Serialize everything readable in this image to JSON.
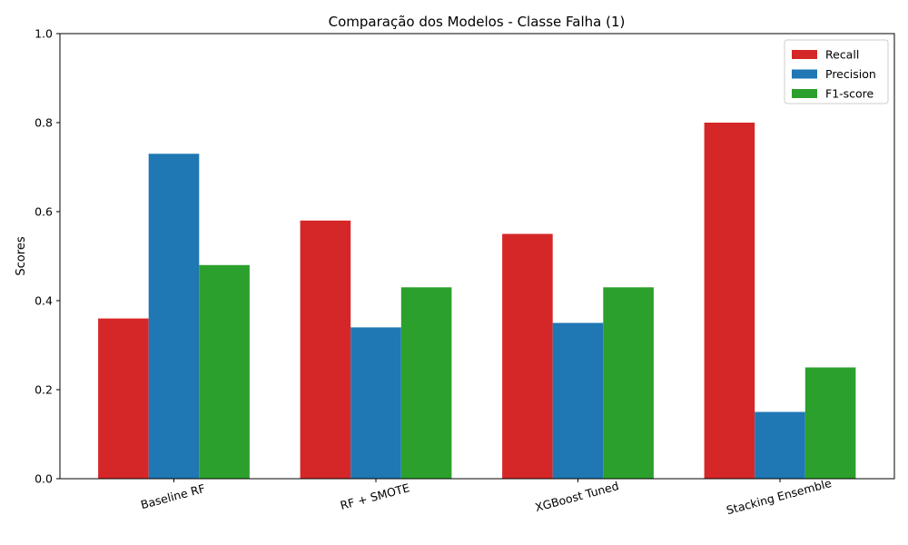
{
  "chart_data": {
    "type": "bar",
    "title": "Comparação dos Modelos - Classe Falha (1)",
    "xlabel": "",
    "ylabel": "Scores",
    "ylim": [
      0,
      1.0
    ],
    "yticks": [
      "0.0",
      "0.2",
      "0.4",
      "0.6",
      "0.8",
      "1.0"
    ],
    "categories": [
      "Baseline RF",
      "RF + SMOTE",
      "XGBoost Tuned",
      "Stacking Ensemble"
    ],
    "series": [
      {
        "name": "Recall",
        "color": "#d62728",
        "values": [
          0.36,
          0.58,
          0.55,
          0.8
        ]
      },
      {
        "name": "Precision",
        "color": "#1f77b4",
        "values": [
          0.73,
          0.34,
          0.35,
          0.15
        ]
      },
      {
        "name": "F1-score",
        "color": "#2ca02c",
        "values": [
          0.48,
          0.43,
          0.43,
          0.25
        ]
      }
    ],
    "legend_position": "top-right",
    "grid": false
  }
}
